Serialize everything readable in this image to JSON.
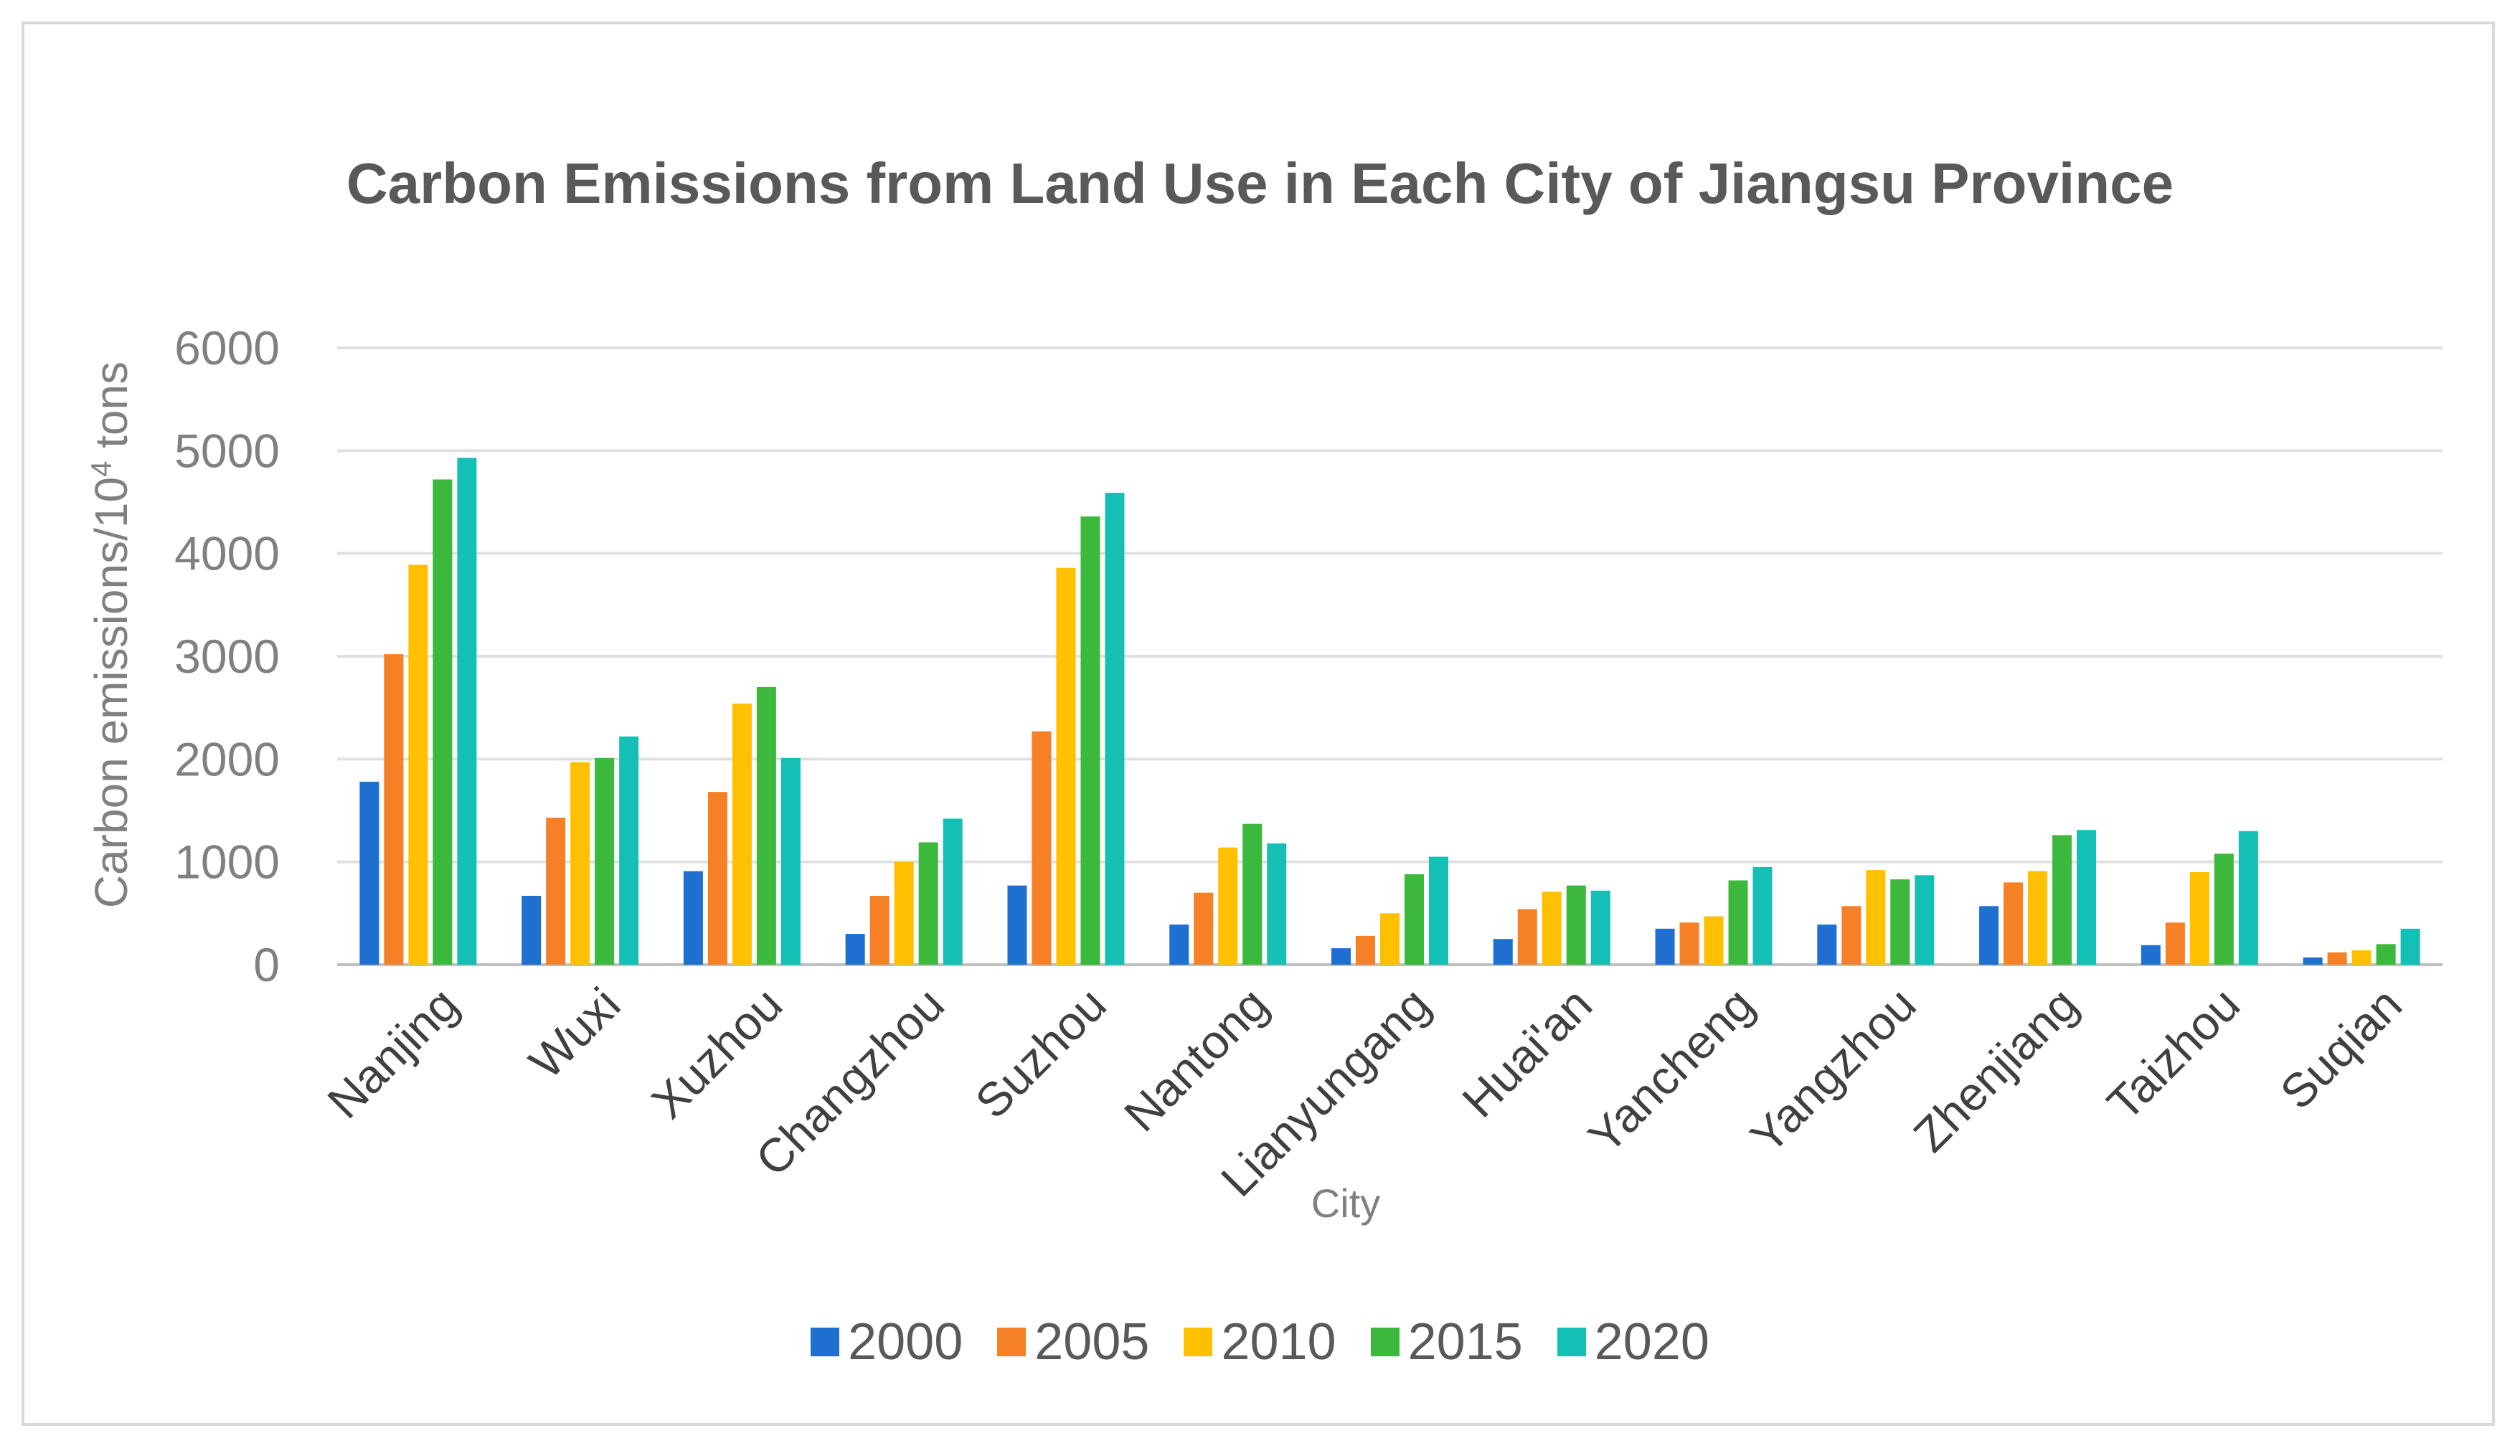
{
  "chart_data": {
    "type": "bar",
    "title": "Carbon Emissions from Land Use in Each City of Jiangsu Province",
    "xlabel": "City",
    "ylabel": "Carbon emissions/10",
    "ylabel_sup": "4",
    "ylabel_suffix": " tons",
    "ylim": [
      0,
      6000
    ],
    "yticks": [
      "0",
      "1000",
      "2000",
      "3000",
      "4000",
      "5000",
      "6000"
    ],
    "grid": true,
    "legend_position": "bottom",
    "categories": [
      "Nanjing",
      "Wuxi",
      "Xuzhou",
      "Changzhou",
      "Suzhou",
      "Nantong",
      "Lianyungang",
      "Huai'an",
      "Yancheng",
      "Yangzhou",
      "Zhenjiang",
      "Taizhou",
      "Suqian"
    ],
    "series": [
      {
        "name": "2000",
        "color": "#1f6fd1",
        "values": [
          1780,
          670,
          910,
          300,
          770,
          390,
          160,
          250,
          350,
          390,
          570,
          190,
          70
        ]
      },
      {
        "name": "2005",
        "color": "#f58026",
        "values": [
          3020,
          1430,
          1680,
          670,
          2270,
          700,
          280,
          540,
          410,
          570,
          800,
          410,
          120
        ]
      },
      {
        "name": "2010",
        "color": "#ffc000",
        "values": [
          3890,
          1970,
          2540,
          1000,
          3860,
          1140,
          500,
          710,
          470,
          920,
          910,
          900,
          140
        ]
      },
      {
        "name": "2015",
        "color": "#3cb93c",
        "values": [
          4720,
          2010,
          2700,
          1190,
          4360,
          1370,
          880,
          770,
          820,
          830,
          1260,
          1080,
          200
        ]
      },
      {
        "name": "2020",
        "color": "#14bfb5",
        "values": [
          4930,
          2220,
          2010,
          1420,
          4590,
          1180,
          1050,
          720,
          950,
          870,
          1310,
          1300,
          350
        ]
      }
    ]
  }
}
